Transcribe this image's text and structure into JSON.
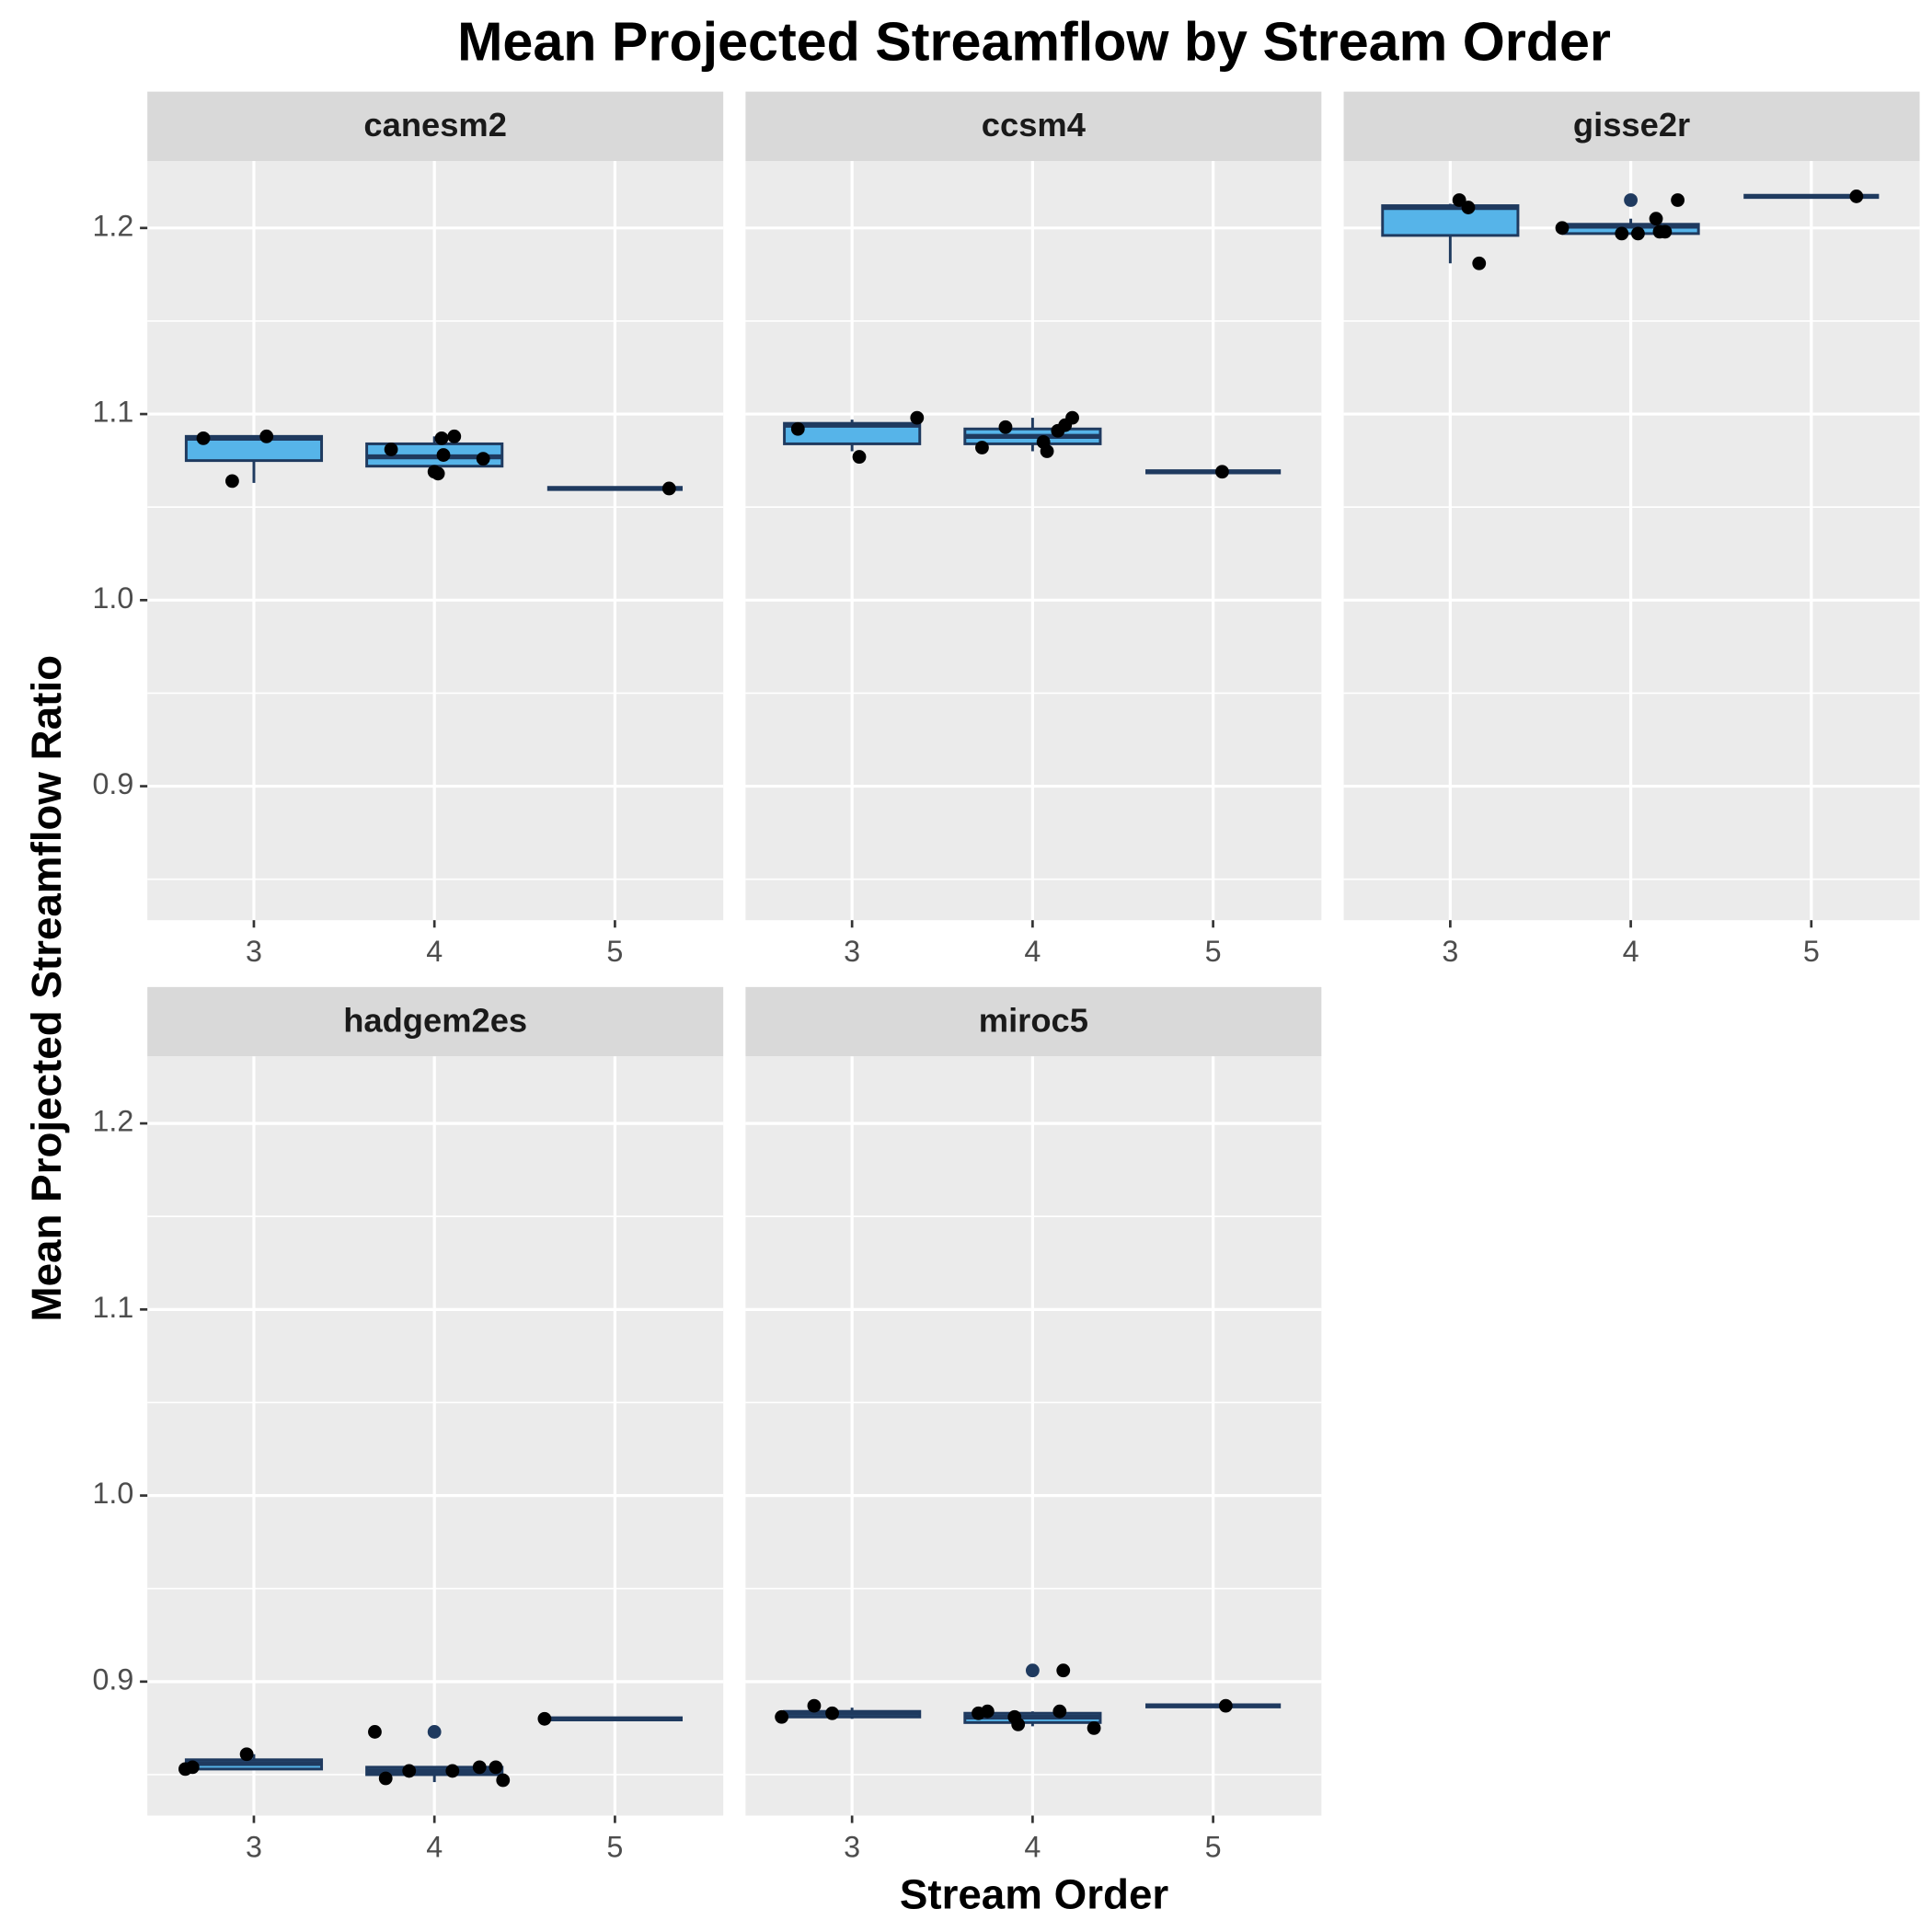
{
  "chart_data": {
    "type": "box",
    "title": "Mean Projected Streamflow by Stream Order",
    "x_label": "Stream Order",
    "y_label": "Mean Projected Streamflow Ratio",
    "xlim": [
      2.41,
      5.6
    ],
    "xticks": [
      3,
      4,
      5
    ],
    "ylim": [
      0.828,
      1.236
    ],
    "yticks": [
      0.9,
      {
        "value": 1.0,
        "label": "1.0"
      },
      1.1,
      1.2
    ],
    "minor_yticks": [
      0.85,
      0.95,
      1.05,
      1.15
    ],
    "grid": true,
    "box_width": 0.75,
    "box_fill": "#56b4e9",
    "box_color": "#1f3a5f",
    "point_color": "#000000",
    "outlier_color": "#1f3a5f",
    "facets": [
      {
        "title": "canesm2",
        "boxes": [
          {
            "x": 3,
            "low": 1.063,
            "q1": 1.075,
            "median": 1.087,
            "q3": 1.088,
            "high": 1.088,
            "outliers": []
          },
          {
            "x": 4,
            "low": 1.068,
            "q1": 1.072,
            "median": 1.077,
            "q3": 1.084,
            "high": 1.088,
            "outliers": []
          },
          {
            "x": 5,
            "low": 1.06,
            "q1": 1.06,
            "median": 1.06,
            "q3": 1.06,
            "high": 1.06,
            "outliers": []
          }
        ],
        "points": {
          "x": [
            2.72,
            2.88,
            3.07,
            3.76,
            4.0,
            4.02,
            4.04,
            4.05,
            4.11,
            4.27,
            5.3
          ],
          "y": [
            1.087,
            1.064,
            1.088,
            1.081,
            1.069,
            1.068,
            1.087,
            1.078,
            1.088,
            1.076,
            1.06
          ]
        }
      },
      {
        "title": "ccsm4",
        "boxes": [
          {
            "x": 3,
            "low": 1.08,
            "q1": 1.084,
            "median": 1.094,
            "q3": 1.095,
            "high": 1.097,
            "outliers": []
          },
          {
            "x": 4,
            "low": 1.08,
            "q1": 1.084,
            "median": 1.088,
            "q3": 1.092,
            "high": 1.098,
            "outliers": []
          },
          {
            "x": 5,
            "low": 1.069,
            "q1": 1.069,
            "median": 1.069,
            "q3": 1.069,
            "high": 1.069,
            "outliers": []
          }
        ],
        "points": {
          "x": [
            2.7,
            3.04,
            3.36,
            3.72,
            3.85,
            4.06,
            4.08,
            4.14,
            4.18,
            4.22,
            5.05
          ],
          "y": [
            1.092,
            1.077,
            1.098,
            1.082,
            1.093,
            1.085,
            1.08,
            1.091,
            1.094,
            1.098,
            1.069
          ]
        }
      },
      {
        "title": "gisse2r",
        "boxes": [
          {
            "x": 3,
            "low": 1.181,
            "q1": 1.196,
            "median": 1.211,
            "q3": 1.212,
            "high": 1.213,
            "outliers": []
          },
          {
            "x": 4,
            "low": 1.197,
            "q1": 1.197,
            "median": 1.201,
            "q3": 1.202,
            "high": 1.205,
            "outliers": [
              1.215
            ]
          },
          {
            "x": 5,
            "low": 1.217,
            "q1": 1.217,
            "median": 1.217,
            "q3": 1.217,
            "high": 1.217,
            "outliers": []
          }
        ],
        "points": {
          "x": [
            3.05,
            3.1,
            3.16,
            3.62,
            3.95,
            4.04,
            4.14,
            4.16,
            4.19,
            4.26,
            5.25
          ],
          "y": [
            1.215,
            1.211,
            1.181,
            1.2,
            1.197,
            1.197,
            1.205,
            1.198,
            1.198,
            1.215,
            1.217
          ]
        }
      },
      {
        "title": "hadgem2es",
        "boxes": [
          {
            "x": 3,
            "low": 0.853,
            "q1": 0.853,
            "median": 0.856,
            "q3": 0.858,
            "high": 0.861,
            "outliers": []
          },
          {
            "x": 4,
            "low": 0.846,
            "q1": 0.85,
            "median": 0.852,
            "q3": 0.854,
            "high": 0.854,
            "outliers": [
              0.873
            ]
          },
          {
            "x": 5,
            "low": 0.88,
            "q1": 0.88,
            "median": 0.88,
            "q3": 0.88,
            "high": 0.88,
            "outliers": []
          }
        ],
        "points": {
          "x": [
            2.62,
            2.66,
            2.96,
            3.67,
            3.73,
            3.86,
            4.1,
            4.25,
            4.34,
            4.38,
            4.61
          ],
          "y": [
            0.853,
            0.854,
            0.861,
            0.873,
            0.848,
            0.852,
            0.852,
            0.854,
            0.854,
            0.847,
            0.88
          ]
        }
      },
      {
        "title": "miroc5",
        "boxes": [
          {
            "x": 3,
            "low": 0.88,
            "q1": 0.881,
            "median": 0.883,
            "q3": 0.884,
            "high": 0.886,
            "outliers": []
          },
          {
            "x": 4,
            "low": 0.876,
            "q1": 0.878,
            "median": 0.881,
            "q3": 0.883,
            "high": 0.884,
            "outliers": [
              0.906
            ]
          },
          {
            "x": 5,
            "low": 0.887,
            "q1": 0.887,
            "median": 0.887,
            "q3": 0.887,
            "high": 0.887,
            "outliers": []
          }
        ],
        "points": {
          "x": [
            2.61,
            2.79,
            2.89,
            3.7,
            3.75,
            3.9,
            3.92,
            4.15,
            4.17,
            4.34,
            5.07
          ],
          "y": [
            0.881,
            0.887,
            0.883,
            0.883,
            0.884,
            0.881,
            0.877,
            0.884,
            0.906,
            0.875,
            0.887
          ]
        }
      }
    ]
  }
}
